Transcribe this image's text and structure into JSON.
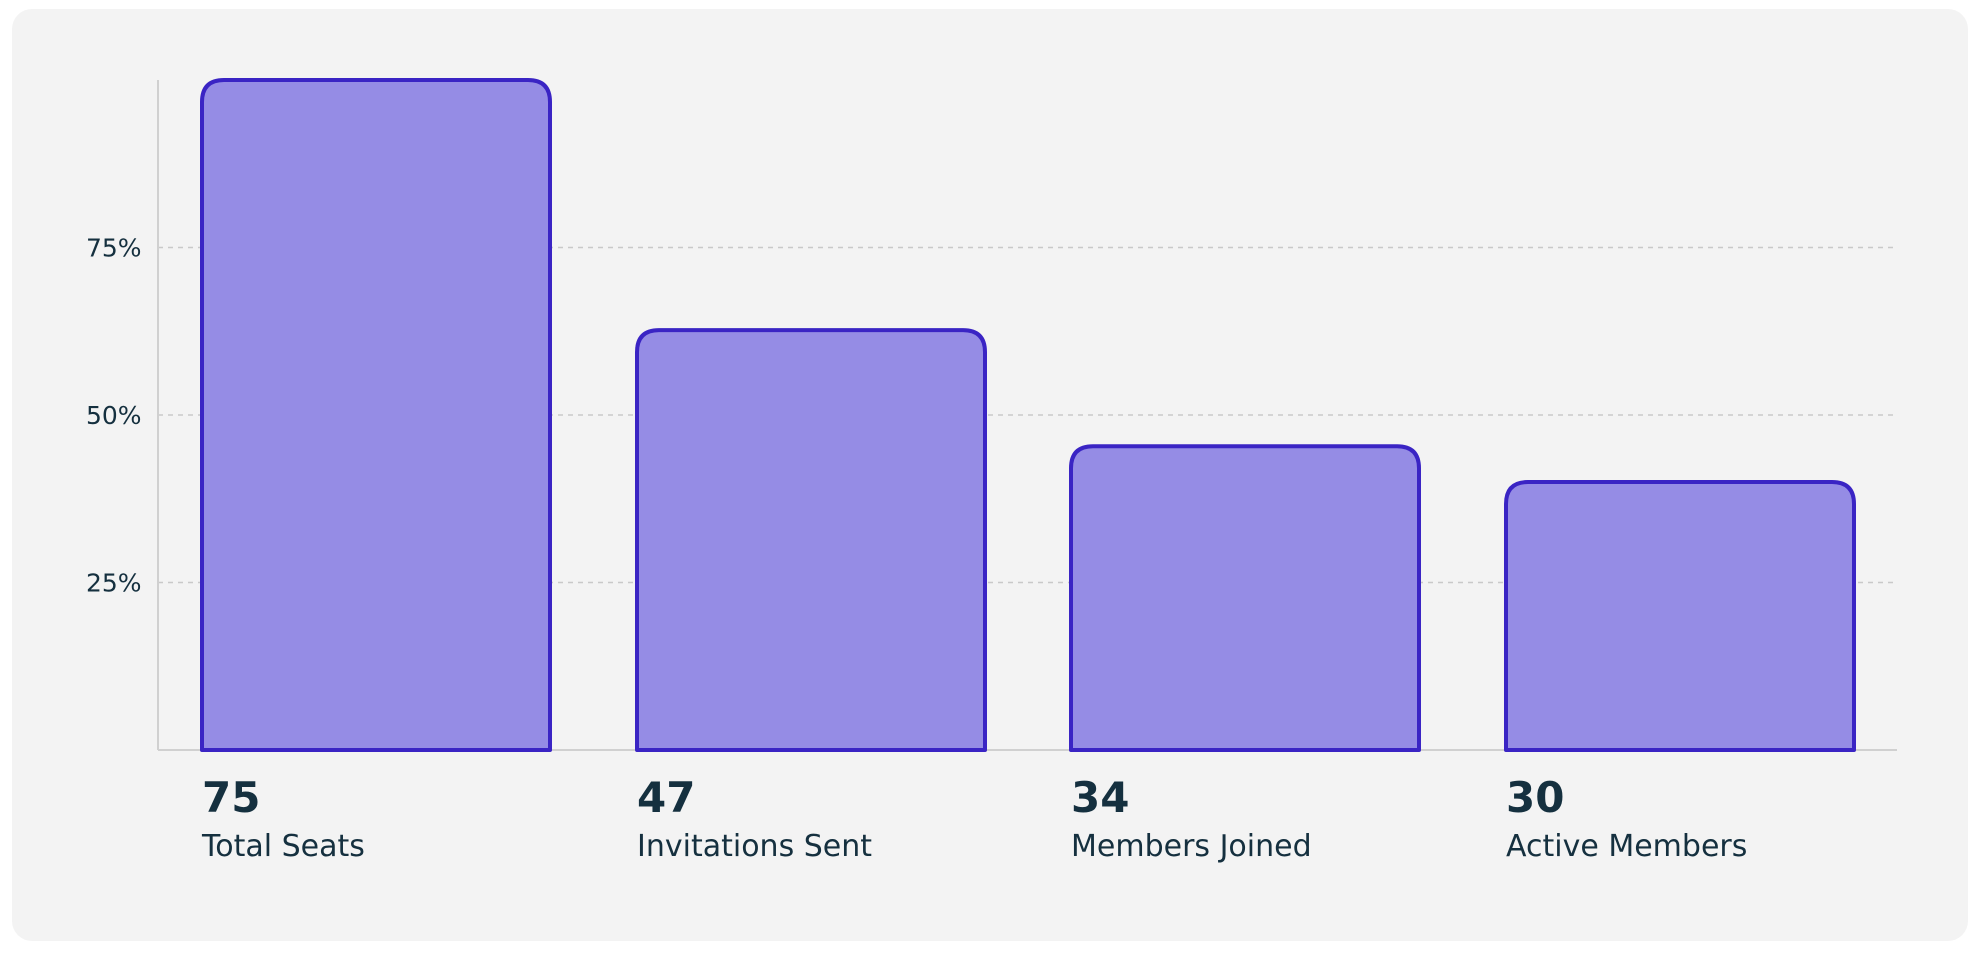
{
  "chart_data": {
    "type": "bar",
    "categories": [
      "Total Seats",
      "Invitations Sent",
      "Members Joined",
      "Active Members"
    ],
    "values": [
      75,
      47,
      34,
      30
    ],
    "value_labels": [
      "75",
      "47",
      "34",
      "30"
    ],
    "yticks": [
      {
        "value": 0.25,
        "label": "25%"
      },
      {
        "value": 0.5,
        "label": "50%"
      },
      {
        "value": 0.75,
        "label": "75%"
      }
    ],
    "ylim": [
      0,
      1
    ],
    "value_scale": 75,
    "grid": "horizontal dashed",
    "title": "",
    "xlabel": "",
    "ylabel": ""
  },
  "colors": {
    "card_background": "#f3f3f3",
    "bar_fill": "#958ce5",
    "bar_stroke": "#3a24c4",
    "gridline": "#c9c9c9",
    "axis": "#d0d0d0",
    "text": "#15303f"
  }
}
